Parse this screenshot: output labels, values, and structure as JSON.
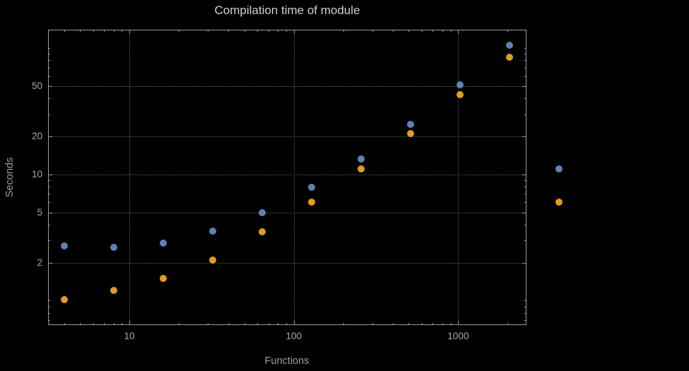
{
  "page": {
    "background": "#000000"
  },
  "chart_data": {
    "type": "scatter",
    "title": "Compilation time of module",
    "xlabel": "Functions",
    "ylabel": "Seconds",
    "x_scale": "log",
    "y_scale": "log",
    "xlim": [
      3.2,
      2600
    ],
    "ylim": [
      0.64,
      140
    ],
    "x_ticks": [
      10,
      100,
      1000
    ],
    "x_tick_labels": [
      "10",
      "100",
      "1000"
    ],
    "y_ticks": [
      2,
      5,
      10,
      20,
      50
    ],
    "y_tick_labels": [
      "2",
      "5",
      "10",
      "20",
      "50"
    ],
    "grid": "dotted",
    "legend": "none",
    "x": [
      4,
      8,
      16,
      32,
      64,
      128,
      256,
      512,
      1024,
      2048,
      4096
    ],
    "series": [
      {
        "name": "series-1-blue",
        "color": "#5e81b5",
        "values": [
          2.7,
          2.65,
          2.85,
          3.55,
          5.0,
          7.9,
          13.2,
          25,
          51,
          105,
          11
        ]
      },
      {
        "name": "series-2-orange",
        "color": "#e19c24",
        "values": [
          1.02,
          1.2,
          1.5,
          2.1,
          3.5,
          6.0,
          11.1,
          21,
          43,
          85,
          6.0
        ]
      }
    ],
    "colors": {
      "frame": "#9b9b9b",
      "grid": "#5f5f5f",
      "title_text": "#cfcfcf",
      "label_text": "#9e9e9e",
      "tick_text": "#a8a8a8"
    }
  }
}
